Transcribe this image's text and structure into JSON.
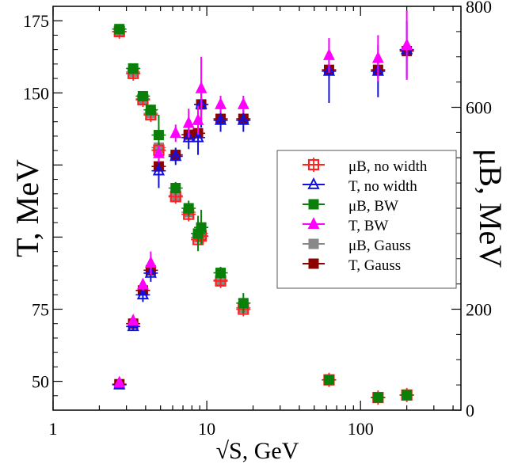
{
  "chart_data": {
    "type": "scatter",
    "x_scale": "log",
    "xlim": [
      1,
      450
    ],
    "ylim_left": [
      40,
      180
    ],
    "ylim_right": [
      0,
      800
    ],
    "xlabel": "√S, GeV",
    "ylabel_left": "T, MeV",
    "ylabel_right": "μB, MeV",
    "x_ticks": [
      {
        "value": 1,
        "label": "1"
      },
      {
        "value": 10,
        "label": "10"
      },
      {
        "value": 100,
        "label": "100"
      }
    ],
    "y_left_ticks": [
      {
        "value": 50,
        "label": "50"
      },
      {
        "value": 75,
        "label": "75"
      },
      {
        "value": 150,
        "label": "150"
      },
      {
        "value": 175,
        "label": "175"
      }
    ],
    "y_right_ticks": [
      {
        "value": 0,
        "label": "0"
      },
      {
        "value": 200,
        "label": "200"
      },
      {
        "value": 600,
        "label": "600"
      },
      {
        "value": 800,
        "label": "800"
      }
    ],
    "legend_position": "center-right",
    "series": [
      {
        "name": "μB, no width",
        "axis": "right",
        "marker": "open-square-plus",
        "color": "#ff2020",
        "points": [
          {
            "x": 2.7,
            "y": 750,
            "err": 8
          },
          {
            "x": 3.32,
            "y": 667,
            "err": 8
          },
          {
            "x": 3.84,
            "y": 615,
            "err": 8
          },
          {
            "x": 4.32,
            "y": 585,
            "err": 10
          },
          {
            "x": 4.87,
            "y": 515,
            "err": 10
          },
          {
            "x": 6.27,
            "y": 423,
            "err": 10
          },
          {
            "x": 7.62,
            "y": 388,
            "err": 10
          },
          {
            "x": 8.77,
            "y": 338,
            "err": 10
          },
          {
            "x": 9.2,
            "y": 345,
            "err": 10
          },
          {
            "x": 12.3,
            "y": 256,
            "err": 8
          },
          {
            "x": 17.3,
            "y": 200,
            "err": 8
          },
          {
            "x": 62.4,
            "y": 60,
            "err": 5
          },
          {
            "x": 130,
            "y": 25,
            "err": 5
          },
          {
            "x": 200,
            "y": 30,
            "err": 5
          }
        ]
      },
      {
        "name": "T, no width",
        "axis": "left",
        "marker": "open-triangle",
        "color": "#1010e0",
        "points": [
          {
            "x": 2.7,
            "y": 48.8,
            "err": 1
          },
          {
            "x": 3.32,
            "y": 69,
            "err": 1.5
          },
          {
            "x": 3.84,
            "y": 80,
            "err": 2.5
          },
          {
            "x": 4.32,
            "y": 87.5,
            "err": 3
          },
          {
            "x": 4.87,
            "y": 123,
            "err": 6
          },
          {
            "x": 6.27,
            "y": 128,
            "err": 3
          },
          {
            "x": 7.62,
            "y": 134.5,
            "err": 4
          },
          {
            "x": 8.77,
            "y": 134.5,
            "err": 6
          },
          {
            "x": 9.2,
            "y": 146,
            "err": 8
          },
          {
            "x": 12.3,
            "y": 140.5,
            "err": 4
          },
          {
            "x": 17.3,
            "y": 140.5,
            "err": 4
          },
          {
            "x": 62.4,
            "y": 157.5,
            "err": 11
          },
          {
            "x": 130,
            "y": 157.5,
            "err": 9
          },
          {
            "x": 200,
            "y": 165,
            "err": 10
          }
        ]
      },
      {
        "name": "μB, BW",
        "axis": "right",
        "marker": "filled-square-plus",
        "color": "#0a800a",
        "points": [
          {
            "x": 2.7,
            "y": 755,
            "err": 8
          },
          {
            "x": 3.32,
            "y": 677,
            "err": 8
          },
          {
            "x": 3.84,
            "y": 622,
            "err": 10
          },
          {
            "x": 4.32,
            "y": 595,
            "err": 10
          },
          {
            "x": 4.87,
            "y": 545,
            "err": 40
          },
          {
            "x": 6.27,
            "y": 440,
            "err": 12
          },
          {
            "x": 7.62,
            "y": 400,
            "err": 15
          },
          {
            "x": 8.77,
            "y": 350,
            "err": 35
          },
          {
            "x": 9.2,
            "y": 362,
            "err": 35
          },
          {
            "x": 12.3,
            "y": 272,
            "err": 12
          },
          {
            "x": 17.3,
            "y": 212,
            "err": 20
          },
          {
            "x": 62.4,
            "y": 60,
            "err": 5
          },
          {
            "x": 130,
            "y": 25,
            "err": 5
          },
          {
            "x": 200,
            "y": 30,
            "err": 5
          }
        ]
      },
      {
        "name": "T, BW",
        "axis": "left",
        "marker": "filled-triangle",
        "color": "#ff00ff",
        "points": [
          {
            "x": 2.7,
            "y": 49.5,
            "err": 1
          },
          {
            "x": 3.32,
            "y": 71,
            "err": 1.5
          },
          {
            "x": 3.84,
            "y": 83.5,
            "err": 2
          },
          {
            "x": 4.32,
            "y": 91,
            "err": 4
          },
          {
            "x": 4.87,
            "y": 129,
            "err": 3
          },
          {
            "x": 6.27,
            "y": 136,
            "err": 3
          },
          {
            "x": 7.62,
            "y": 139.5,
            "err": 5
          },
          {
            "x": 8.77,
            "y": 140.5,
            "err": 5
          },
          {
            "x": 9.2,
            "y": 151.5,
            "err": 11
          },
          {
            "x": 12.3,
            "y": 146,
            "err": 3
          },
          {
            "x": 17.3,
            "y": 146,
            "err": 3
          },
          {
            "x": 62.4,
            "y": 163,
            "err": 6
          },
          {
            "x": 130,
            "y": 162,
            "err": 8
          },
          {
            "x": 200,
            "y": 166.5,
            "err": 12
          }
        ]
      },
      {
        "name": "μB, Gauss",
        "axis": "right",
        "marker": "filled-square-plus",
        "color": "#888888",
        "points": [
          {
            "x": 2.7,
            "y": 750,
            "err": 8
          },
          {
            "x": 3.32,
            "y": 670,
            "err": 8
          },
          {
            "x": 3.84,
            "y": 617,
            "err": 8
          },
          {
            "x": 4.32,
            "y": 588,
            "err": 8
          },
          {
            "x": 4.87,
            "y": 520,
            "err": 10
          },
          {
            "x": 6.27,
            "y": 425,
            "err": 10
          },
          {
            "x": 7.62,
            "y": 392,
            "err": 10
          },
          {
            "x": 8.77,
            "y": 342,
            "err": 10
          },
          {
            "x": 9.2,
            "y": 350,
            "err": 10
          },
          {
            "x": 12.3,
            "y": 258,
            "err": 8
          },
          {
            "x": 17.3,
            "y": 203,
            "err": 8
          },
          {
            "x": 62.4,
            "y": 60,
            "err": 5
          },
          {
            "x": 130,
            "y": 25,
            "err": 5
          },
          {
            "x": 200,
            "y": 30,
            "err": 5
          }
        ]
      },
      {
        "name": "T, Gauss",
        "axis": "left",
        "marker": "filled-square-plus",
        "color": "#8b0000",
        "points": [
          {
            "x": 2.7,
            "y": 49,
            "err": 0.8
          },
          {
            "x": 3.32,
            "y": 70,
            "err": 1
          },
          {
            "x": 3.84,
            "y": 81.5,
            "err": 1
          },
          {
            "x": 4.32,
            "y": 88.5,
            "err": 1.5
          },
          {
            "x": 4.87,
            "y": 124.5,
            "err": 2
          },
          {
            "x": 6.27,
            "y": 128.5,
            "err": 2
          },
          {
            "x": 7.62,
            "y": 135.5,
            "err": 2
          },
          {
            "x": 8.77,
            "y": 136,
            "err": 2
          },
          {
            "x": 9.2,
            "y": 146,
            "err": 3
          },
          {
            "x": 12.3,
            "y": 141,
            "err": 2
          },
          {
            "x": 17.3,
            "y": 141,
            "err": 2
          },
          {
            "x": 62.4,
            "y": 158,
            "err": 3
          },
          {
            "x": 130,
            "y": 158,
            "err": 3
          },
          {
            "x": 200,
            "y": 164.5,
            "err": 3
          }
        ]
      }
    ]
  }
}
